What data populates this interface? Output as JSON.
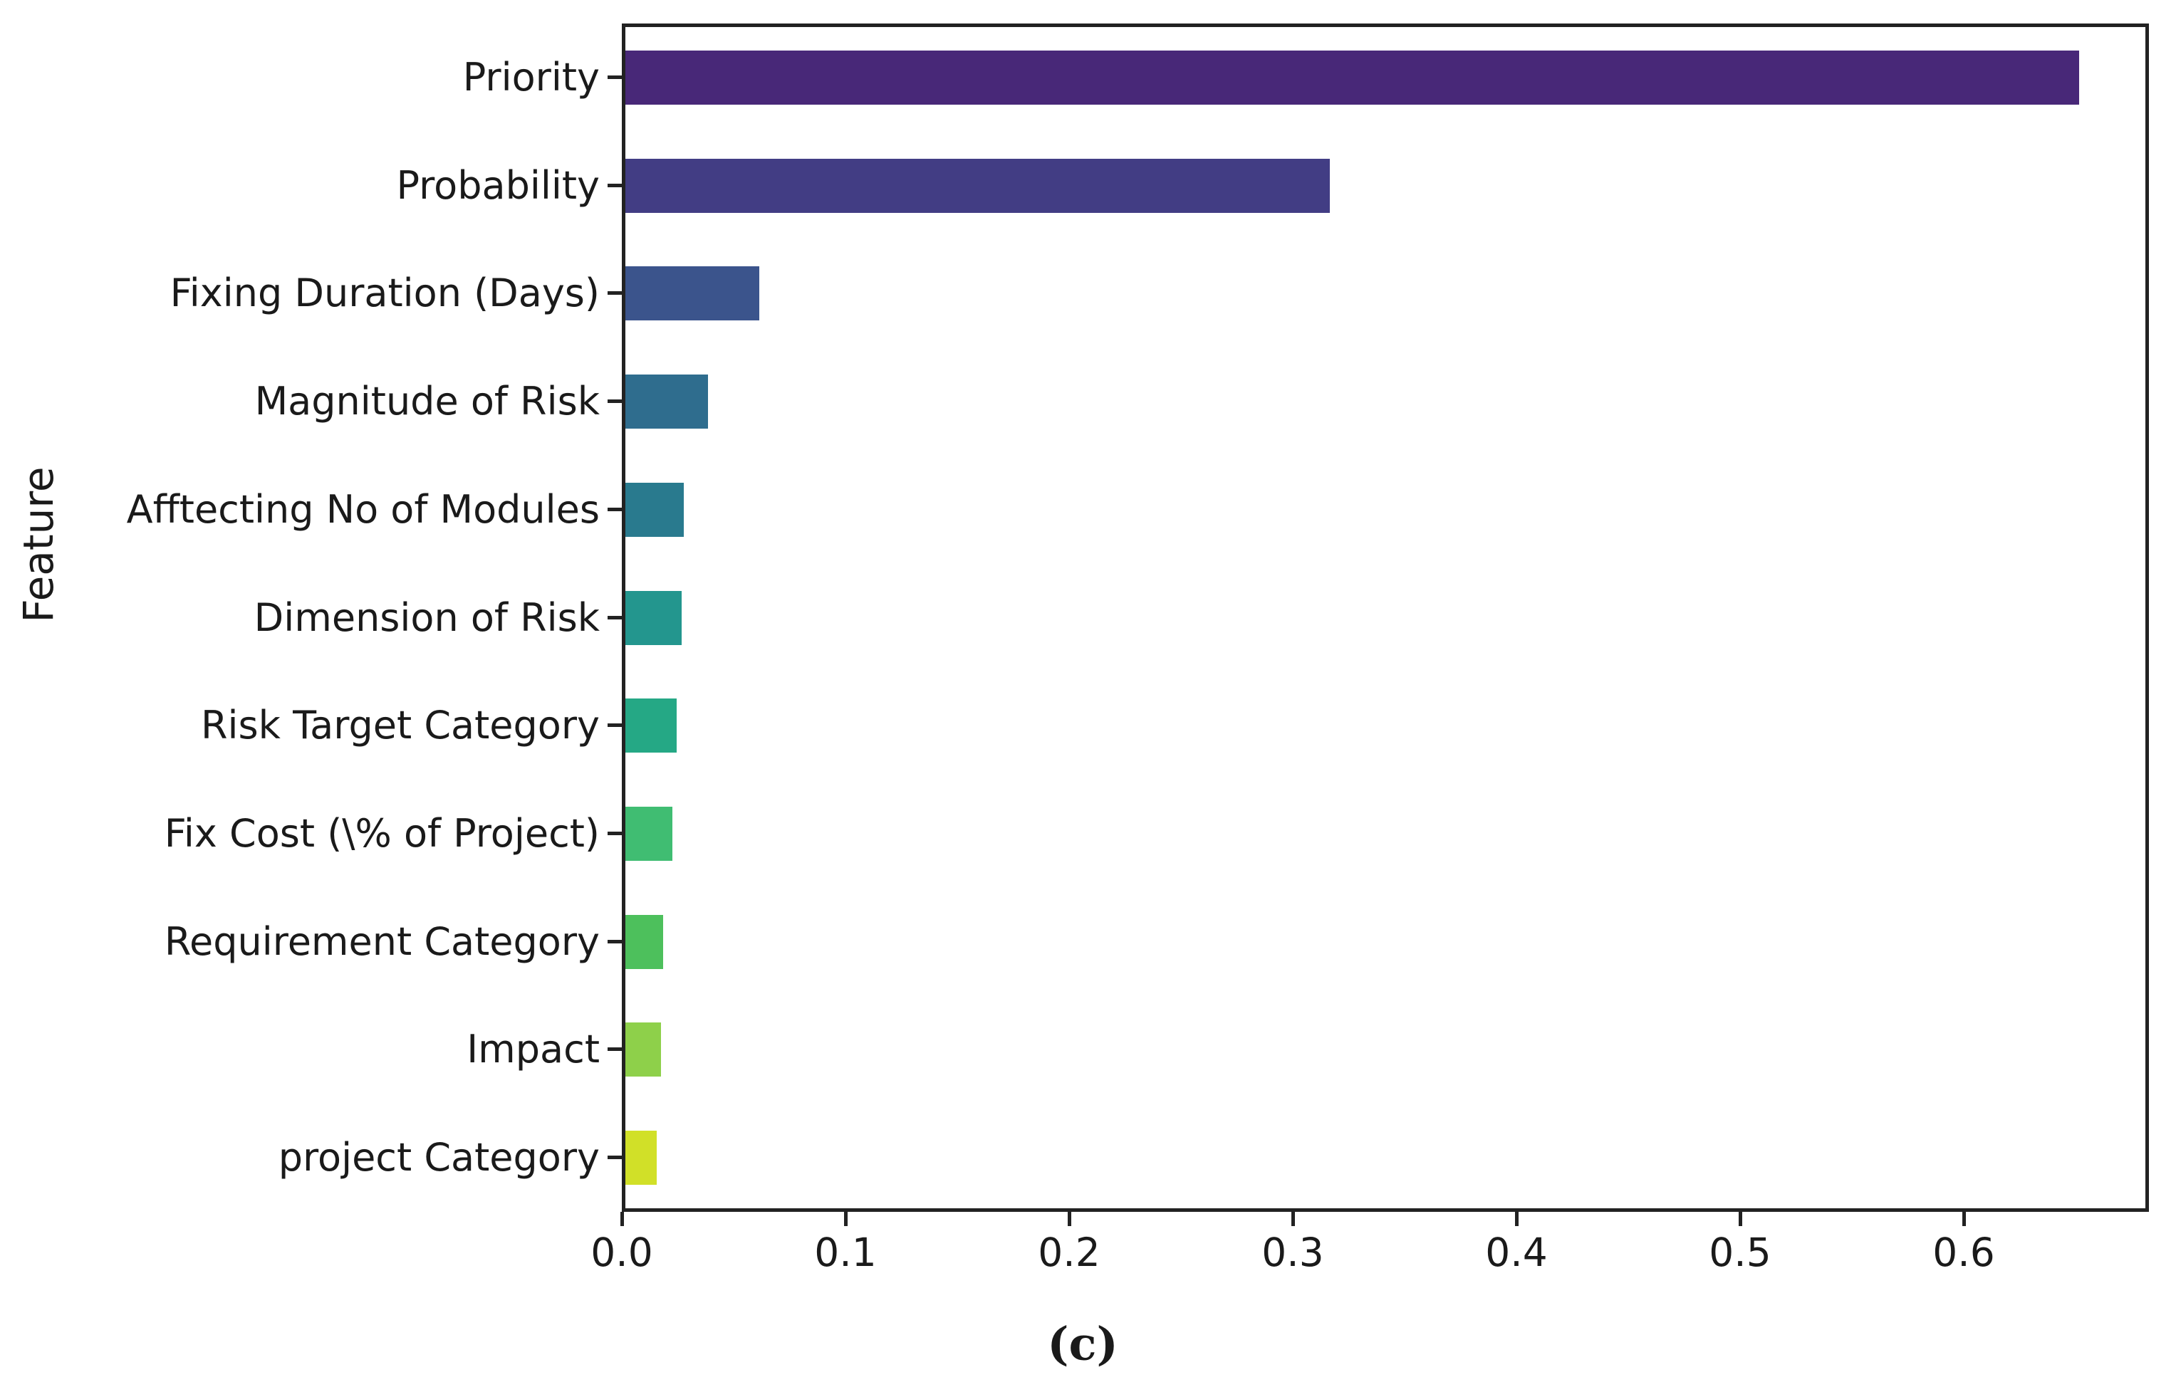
{
  "figure": {
    "caption": "(c)",
    "y_axis_title": "Feature"
  },
  "chart_data": {
    "type": "bar",
    "orientation": "horizontal",
    "title": "",
    "xlabel": "",
    "ylabel": "Feature",
    "caption": "(c)",
    "grid": false,
    "legend": "none",
    "xlim": [
      0,
      0.6828
    ],
    "x_ticks": [
      "0.0",
      "0.1",
      "0.2",
      "0.3",
      "0.4",
      "0.5",
      "0.6"
    ],
    "x_tick_values": [
      0,
      0.1,
      0.2,
      0.3,
      0.4,
      0.5,
      0.6
    ],
    "categories": [
      "Priority",
      "Probability",
      "Fixing Duration (Days)",
      "Magnitude of Risk",
      "Afftecting No of Modules",
      "Dimension of Risk",
      "Risk Target Category",
      "Fix Cost (\\% of Project)",
      "Requirement Category",
      "Impact",
      "project Category"
    ],
    "values": [
      0.65,
      0.315,
      0.06,
      0.037,
      0.026,
      0.025,
      0.023,
      0.021,
      0.017,
      0.016,
      0.014
    ],
    "colors": [
      "#482878",
      "#423d84",
      "#3b548c",
      "#2f6d8e",
      "#297a8e",
      "#23968e",
      "#25a885",
      "#40bd72",
      "#4dc05c",
      "#8ed04a",
      "#d1e028"
    ],
    "colormap": "viridis"
  }
}
